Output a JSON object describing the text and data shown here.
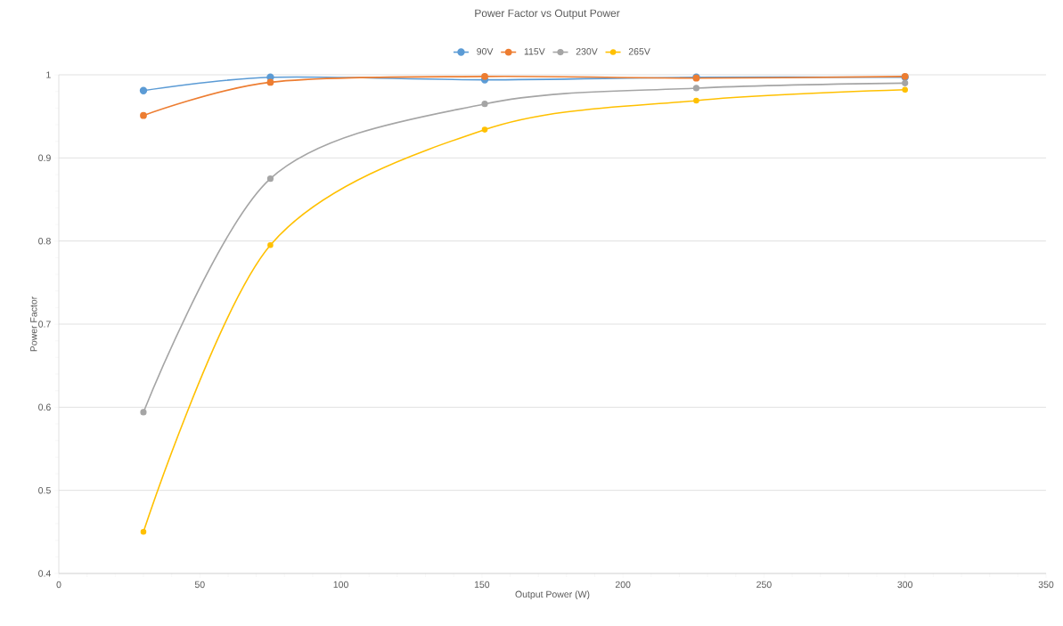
{
  "chart_data": {
    "type": "line",
    "title": "Power Factor vs Output Power",
    "xlabel": "Output Power (W)",
    "ylabel": "Power Factor",
    "x": [
      30,
      75,
      151,
      226,
      300
    ],
    "series": [
      {
        "name": "90V",
        "color": "#5b9bd5",
        "values": [
          0.981,
          0.997,
          0.994,
          0.997,
          0.997
        ]
      },
      {
        "name": "115V",
        "color": "#ed7d31",
        "values": [
          0.951,
          0.991,
          0.998,
          0.996,
          0.998
        ]
      },
      {
        "name": "230V",
        "color": "#a5a5a5",
        "values": [
          0.594,
          0.875,
          0.965,
          0.984,
          0.99
        ]
      },
      {
        "name": "265V",
        "color": "#ffc000",
        "values": [
          0.45,
          0.795,
          0.934,
          0.969,
          0.982
        ]
      }
    ],
    "xlim": [
      0,
      350
    ],
    "xticks": [
      0,
      50,
      100,
      150,
      200,
      250,
      300,
      350
    ],
    "ylim": [
      0.4,
      1
    ],
    "yticks": [
      0.4,
      0.5,
      0.6,
      0.7,
      0.8,
      0.9,
      1
    ],
    "grid": "y",
    "legend": "top",
    "marker": "circle",
    "line_style": "solid"
  }
}
